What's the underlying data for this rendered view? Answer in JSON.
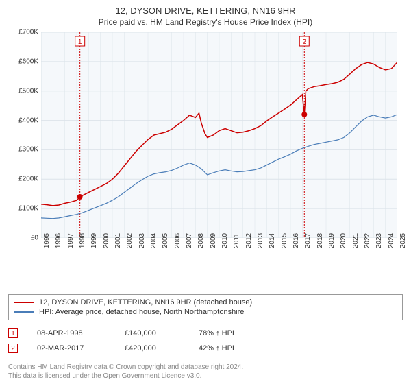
{
  "title": "12, DYSON DRIVE, KETTERING, NN16 9HR",
  "subtitle": "Price paid vs. HM Land Registry's House Price Index (HPI)",
  "chart": {
    "type": "line",
    "background_color": "#ffffff",
    "plot_bg_color": "#f5f8fb",
    "grid_color": "#dce3ea",
    "ylim": [
      0,
      700000
    ],
    "ytick_step": 100000,
    "yticks": [
      "£0",
      "£100K",
      "£200K",
      "£300K",
      "£400K",
      "£500K",
      "£600K",
      "£700K"
    ],
    "xlim": [
      1995,
      2025
    ],
    "xticks": [
      "1995",
      "1996",
      "1997",
      "1998",
      "1999",
      "2000",
      "2001",
      "2002",
      "2003",
      "2004",
      "2005",
      "2006",
      "2007",
      "2008",
      "2009",
      "2010",
      "2011",
      "2012",
      "2013",
      "2014",
      "2015",
      "2016",
      "2017",
      "2018",
      "2019",
      "2020",
      "2021",
      "2022",
      "2023",
      "2024",
      "2025"
    ],
    "xtick_fontsize": 10,
    "ytick_fontsize": 10,
    "series": [
      {
        "name": "property",
        "legend": "12, DYSON DRIVE, KETTERING, NN16 9HR (detached house)",
        "color": "#cc0000",
        "line_width": 1.5,
        "data": [
          [
            1995,
            115000
          ],
          [
            1995.5,
            113000
          ],
          [
            1996,
            110000
          ],
          [
            1996.5,
            112000
          ],
          [
            1997,
            118000
          ],
          [
            1997.5,
            122000
          ],
          [
            1998,
            128000
          ],
          [
            1998.27,
            140000
          ],
          [
            1998.5,
            145000
          ],
          [
            1999,
            155000
          ],
          [
            1999.5,
            165000
          ],
          [
            2000,
            175000
          ],
          [
            2000.5,
            185000
          ],
          [
            2001,
            200000
          ],
          [
            2001.5,
            220000
          ],
          [
            2002,
            245000
          ],
          [
            2002.5,
            270000
          ],
          [
            2003,
            295000
          ],
          [
            2003.5,
            315000
          ],
          [
            2004,
            335000
          ],
          [
            2004.5,
            350000
          ],
          [
            2005,
            355000
          ],
          [
            2005.5,
            360000
          ],
          [
            2006,
            370000
          ],
          [
            2006.5,
            385000
          ],
          [
            2007,
            400000
          ],
          [
            2007.5,
            418000
          ],
          [
            2008,
            410000
          ],
          [
            2008.3,
            425000
          ],
          [
            2008.5,
            390000
          ],
          [
            2008.8,
            355000
          ],
          [
            2009,
            342000
          ],
          [
            2009.5,
            350000
          ],
          [
            2010,
            365000
          ],
          [
            2010.5,
            372000
          ],
          [
            2011,
            365000
          ],
          [
            2011.5,
            358000
          ],
          [
            2012,
            360000
          ],
          [
            2012.5,
            365000
          ],
          [
            2013,
            372000
          ],
          [
            2013.5,
            382000
          ],
          [
            2014,
            398000
          ],
          [
            2014.5,
            412000
          ],
          [
            2015,
            425000
          ],
          [
            2015.5,
            438000
          ],
          [
            2016,
            452000
          ],
          [
            2016.5,
            470000
          ],
          [
            2017,
            488000
          ],
          [
            2017.17,
            420000
          ],
          [
            2017.3,
            500000
          ],
          [
            2017.5,
            508000
          ],
          [
            2018,
            515000
          ],
          [
            2018.5,
            518000
          ],
          [
            2019,
            522000
          ],
          [
            2019.5,
            525000
          ],
          [
            2020,
            530000
          ],
          [
            2020.5,
            540000
          ],
          [
            2021,
            558000
          ],
          [
            2021.5,
            576000
          ],
          [
            2022,
            590000
          ],
          [
            2022.5,
            597000
          ],
          [
            2023,
            592000
          ],
          [
            2023.5,
            580000
          ],
          [
            2024,
            572000
          ],
          [
            2024.5,
            576000
          ],
          [
            2025,
            598000
          ]
        ]
      },
      {
        "name": "hpi",
        "legend": "HPI: Average price, detached house, North Northamptonshire",
        "color": "#4a7db8",
        "line_width": 1.2,
        "data": [
          [
            1995,
            68000
          ],
          [
            1995.5,
            67000
          ],
          [
            1996,
            66000
          ],
          [
            1996.5,
            68000
          ],
          [
            1997,
            72000
          ],
          [
            1997.5,
            76000
          ],
          [
            1998,
            80000
          ],
          [
            1998.5,
            86000
          ],
          [
            1999,
            94000
          ],
          [
            1999.5,
            102000
          ],
          [
            2000,
            110000
          ],
          [
            2000.5,
            118000
          ],
          [
            2001,
            128000
          ],
          [
            2001.5,
            140000
          ],
          [
            2002,
            155000
          ],
          [
            2002.5,
            170000
          ],
          [
            2003,
            185000
          ],
          [
            2003.5,
            198000
          ],
          [
            2004,
            210000
          ],
          [
            2004.5,
            218000
          ],
          [
            2005,
            222000
          ],
          [
            2005.5,
            225000
          ],
          [
            2006,
            230000
          ],
          [
            2006.5,
            238000
          ],
          [
            2007,
            248000
          ],
          [
            2007.5,
            255000
          ],
          [
            2008,
            248000
          ],
          [
            2008.5,
            235000
          ],
          [
            2009,
            215000
          ],
          [
            2009.5,
            222000
          ],
          [
            2010,
            228000
          ],
          [
            2010.5,
            232000
          ],
          [
            2011,
            228000
          ],
          [
            2011.5,
            225000
          ],
          [
            2012,
            226000
          ],
          [
            2012.5,
            229000
          ],
          [
            2013,
            232000
          ],
          [
            2013.5,
            238000
          ],
          [
            2014,
            248000
          ],
          [
            2014.5,
            258000
          ],
          [
            2015,
            268000
          ],
          [
            2015.5,
            276000
          ],
          [
            2016,
            285000
          ],
          [
            2016.5,
            296000
          ],
          [
            2017,
            305000
          ],
          [
            2017.5,
            312000
          ],
          [
            2018,
            318000
          ],
          [
            2018.5,
            322000
          ],
          [
            2019,
            326000
          ],
          [
            2019.5,
            330000
          ],
          [
            2020,
            334000
          ],
          [
            2020.5,
            342000
          ],
          [
            2021,
            358000
          ],
          [
            2021.5,
            378000
          ],
          [
            2022,
            398000
          ],
          [
            2022.5,
            412000
          ],
          [
            2023,
            418000
          ],
          [
            2023.5,
            412000
          ],
          [
            2024,
            408000
          ],
          [
            2024.5,
            412000
          ],
          [
            2025,
            420000
          ]
        ]
      }
    ],
    "transaction_markers": [
      {
        "n": "1",
        "x": 1998.27,
        "y": 140000,
        "color": "#cc0000"
      },
      {
        "n": "2",
        "x": 2017.17,
        "y": 420000,
        "color": "#cc0000"
      }
    ]
  },
  "legend": {
    "border_color": "#999999",
    "fontsize": 11
  },
  "transactions": [
    {
      "marker": "1",
      "marker_color": "#cc0000",
      "date": "08-APR-1998",
      "price": "£140,000",
      "pct": "78% ↑ HPI"
    },
    {
      "marker": "2",
      "marker_color": "#cc0000",
      "date": "02-MAR-2017",
      "price": "£420,000",
      "pct": "42% ↑ HPI"
    }
  ],
  "footer_line1": "Contains HM Land Registry data © Crown copyright and database right 2024.",
  "footer_line2": "This data is licensed under the Open Government Licence v3.0.",
  "colors": {
    "text": "#333333",
    "footer_text": "#888888",
    "marker_line": "#cc0000"
  }
}
